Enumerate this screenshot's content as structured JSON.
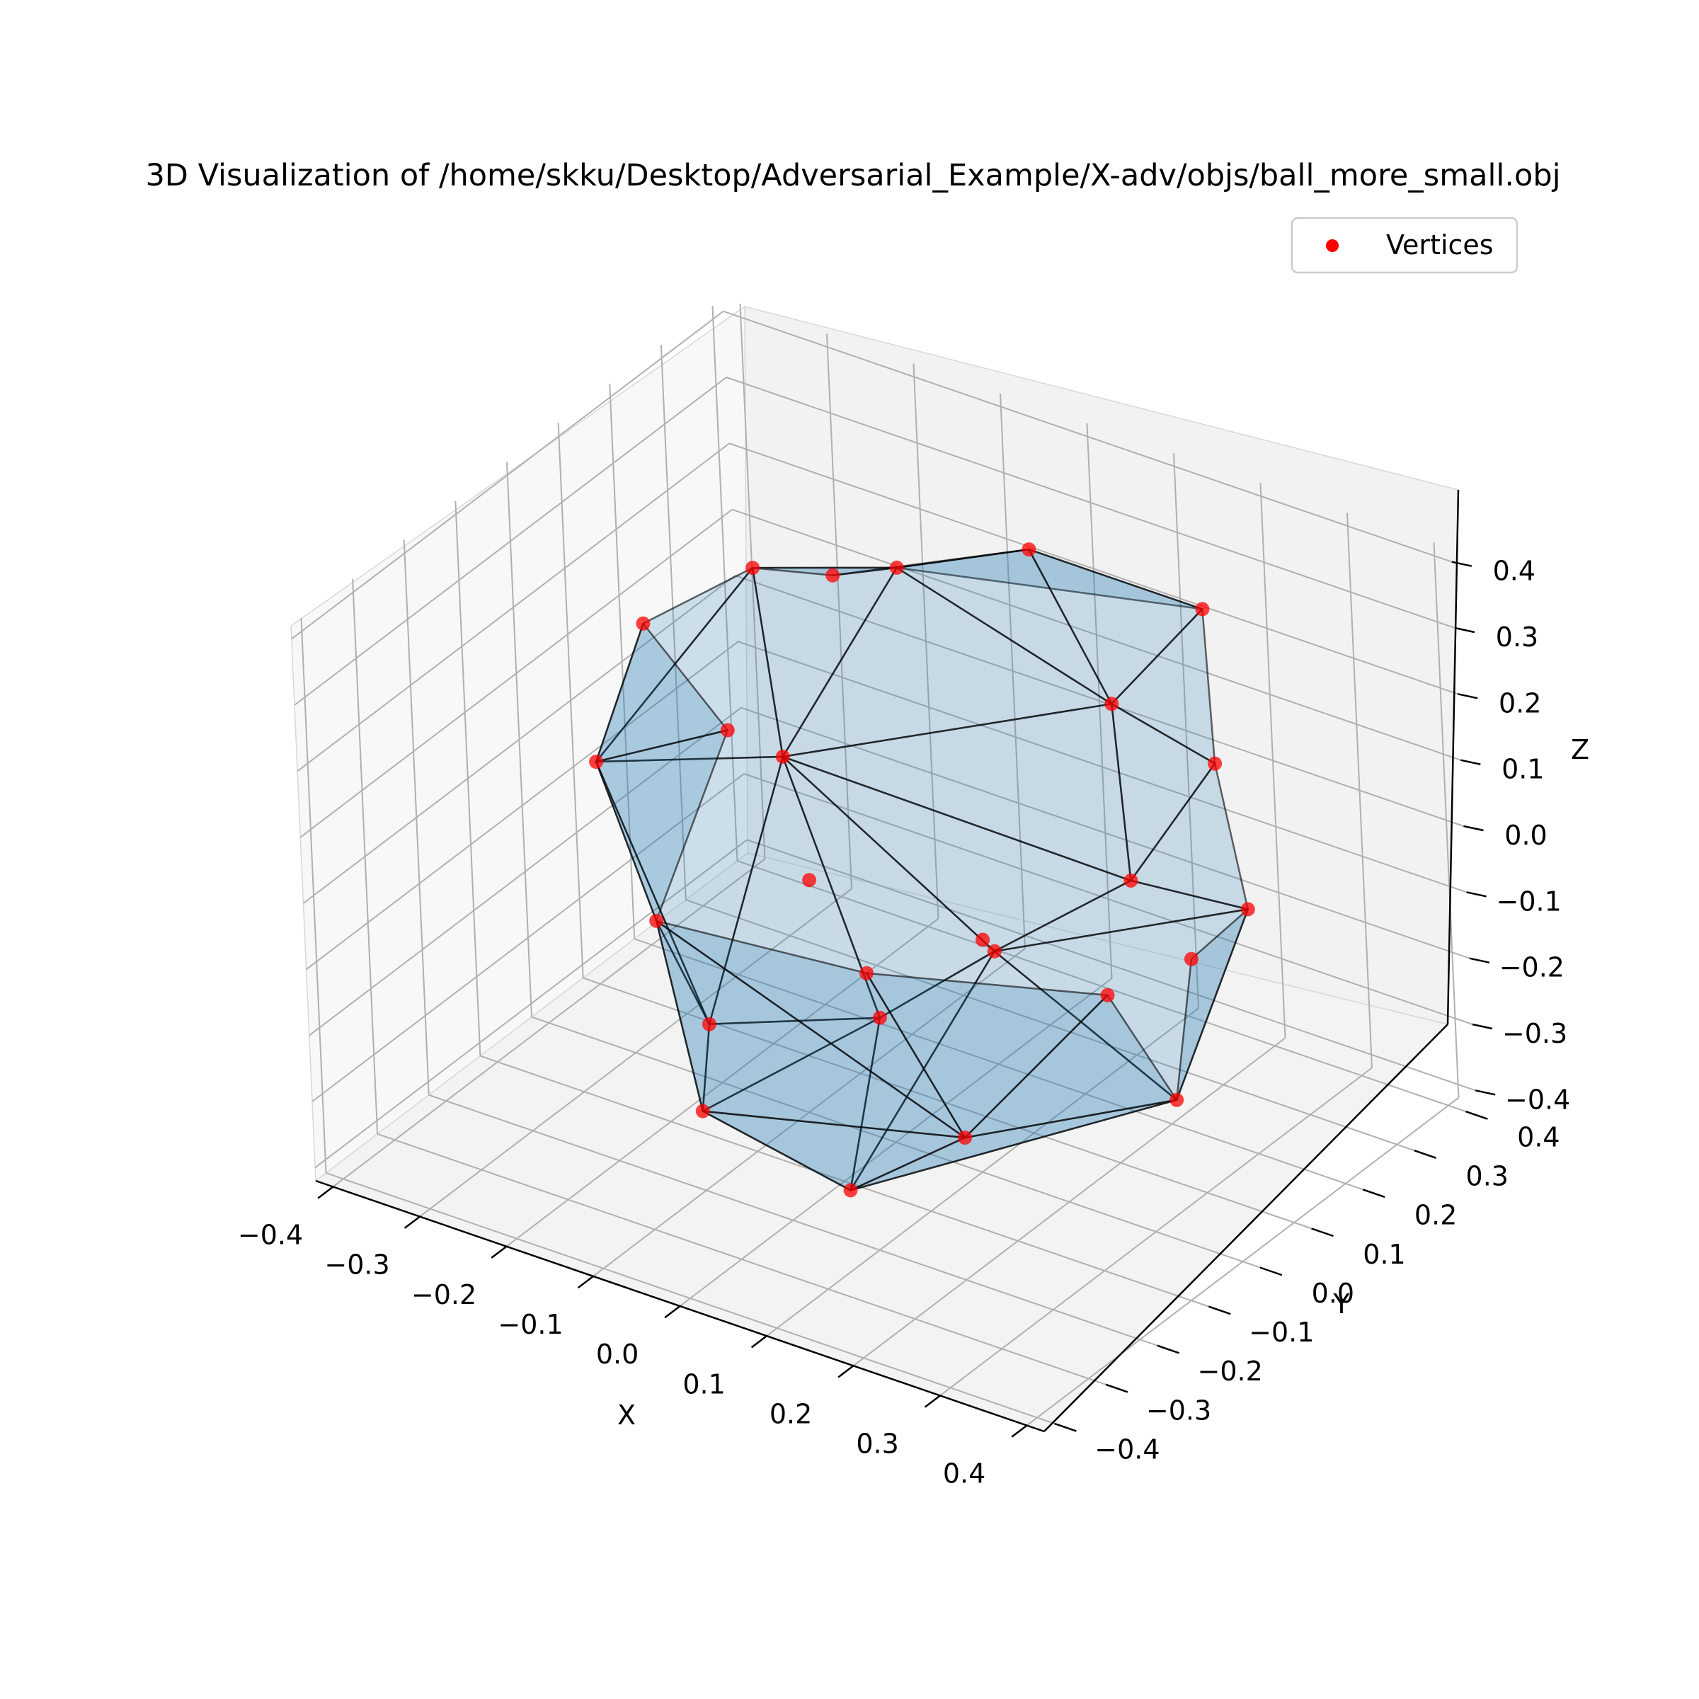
{
  "chart_data": {
    "type": "scatter",
    "projection": "3d",
    "title": "3D Visualization of /home/skku/Desktop/Adversarial_Example/X-adv/objs/ball_more_small.obj",
    "xlabel": "X",
    "ylabel": "Y",
    "zlabel": "Z",
    "xlim": [
      -0.42,
      0.42
    ],
    "ylim": [
      -0.42,
      0.42
    ],
    "zlim": [
      -0.42,
      0.42
    ],
    "xticks": [
      "−0.4",
      "−0.3",
      "−0.2",
      "−0.1",
      "0.0",
      "0.1",
      "0.2",
      "0.3",
      "0.4"
    ],
    "yticks": [
      "−0.4",
      "−0.3",
      "−0.2",
      "−0.1",
      "0.0",
      "0.1",
      "0.2",
      "0.3",
      "0.4"
    ],
    "zticks": [
      "−0.4",
      "−0.3",
      "−0.2",
      "−0.1",
      "0.0",
      "0.1",
      "0.2",
      "0.3",
      "0.4"
    ],
    "grid": true,
    "legend": {
      "position": "top-right",
      "entries": [
        "Vertices"
      ]
    },
    "colors": {
      "vertices": "#ff0000",
      "mesh_fill": "#1f77b4",
      "mesh_edge": "#000000",
      "pane": "#f2f2f2",
      "grid": "#b0b0b0"
    },
    "series": [
      {
        "name": "Vertices",
        "vertices": [
          [
            0,
            0.3,
            0.3
          ],
          [
            0.2,
            0.3,
            0.3
          ],
          [
            -0.2,
            0.1,
            0.3
          ],
          [
            0.3,
            0.15,
            0.2
          ],
          [
            -0.3,
            0.05,
            0.2
          ],
          [
            0.32,
            -0.05,
            0.15
          ],
          [
            -0.05,
            -0.1,
            0.2
          ],
          [
            0.3,
            0.2,
            -0.05
          ],
          [
            -0.3,
            -0.05,
            0.05
          ],
          [
            0.12,
            0.25,
            0.15
          ],
          [
            -0.2,
            0.25,
            0.2
          ],
          [
            0.25,
            -0.2,
            0.1
          ],
          [
            0.05,
            -0.1,
            -0.15
          ],
          [
            -0.3,
            0.2,
            -0.05
          ],
          [
            0.2,
            0.25,
            -0.2
          ],
          [
            -0.15,
            -0.1,
            -0.25
          ],
          [
            0.3,
            0.05,
            -0.25
          ],
          [
            -0.3,
            0.05,
            -0.25
          ],
          [
            0.1,
            -0.25,
            -0.3
          ],
          [
            -0.1,
            -0.2,
            -0.3
          ],
          [
            0.05,
            0.1,
            -0.15
          ],
          [
            -0.15,
            0.1,
            -0.15
          ],
          [
            0.1,
            0.25,
            -0.3
          ],
          [
            -0.15,
            0.2,
            -0.35
          ],
          [
            0,
            0.05,
            0.42
          ],
          [
            0.05,
            0.05,
            -0.42
          ]
        ],
        "faces": [
          [
            24,
            0,
            1
          ],
          [
            24,
            2,
            6
          ],
          [
            24,
            6,
            9
          ],
          [
            24,
            9,
            0
          ],
          [
            24,
            10,
            2
          ],
          [
            24,
            0,
            10
          ],
          [
            0,
            9,
            1
          ],
          [
            1,
            9,
            3
          ],
          [
            3,
            5,
            9
          ],
          [
            2,
            4,
            8
          ],
          [
            2,
            8,
            6
          ],
          [
            6,
            8,
            15
          ],
          [
            6,
            15,
            12
          ],
          [
            6,
            12,
            11
          ],
          [
            6,
            11,
            5
          ],
          [
            6,
            5,
            9
          ],
          [
            5,
            11,
            7
          ],
          [
            5,
            7,
            3
          ],
          [
            4,
            13,
            8
          ],
          [
            8,
            13,
            17
          ],
          [
            8,
            17,
            15
          ],
          [
            15,
            17,
            19
          ],
          [
            15,
            19,
            12
          ],
          [
            12,
            19,
            18
          ],
          [
            12,
            18,
            11
          ],
          [
            11,
            18,
            16
          ],
          [
            11,
            16,
            7
          ],
          [
            7,
            16,
            14
          ],
          [
            25,
            19,
            18
          ],
          [
            25,
            18,
            16
          ],
          [
            25,
            16,
            22
          ],
          [
            25,
            22,
            23
          ],
          [
            25,
            23,
            17
          ],
          [
            25,
            17,
            19
          ]
        ]
      }
    ]
  }
}
